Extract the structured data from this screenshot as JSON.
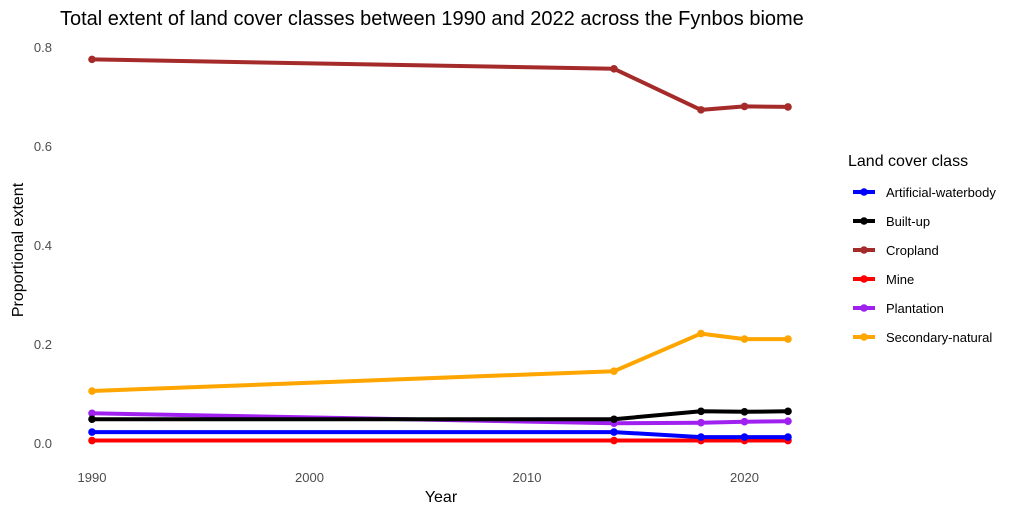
{
  "chart_data": {
    "type": "line",
    "title": "Total extent of land cover classes between 1990 and 2022 across the Fynbos biome",
    "xlabel": "Year",
    "ylabel": "Proportional extent",
    "xlim": [
      1990,
      2022
    ],
    "ylim": [
      0,
      0.8
    ],
    "xticks": [
      1990,
      2000,
      2010,
      2020
    ],
    "yticks": [
      0.0,
      0.2,
      0.4,
      0.6,
      0.8
    ],
    "ytick_labels": [
      "0.0",
      "0.2",
      "0.4",
      "0.6",
      "0.8"
    ],
    "grid": false,
    "legend_position": "right",
    "legend_title": "Land cover class",
    "series": [
      {
        "name": "Artificial-waterbody",
        "color": "#0000ff",
        "x": [
          1990,
          2014,
          2018,
          2020,
          2022
        ],
        "y": [
          0.022,
          0.022,
          0.012,
          0.012,
          0.012
        ]
      },
      {
        "name": "Built-up",
        "color": "#000000",
        "x": [
          1990,
          2014,
          2018,
          2020,
          2022
        ],
        "y": [
          0.048,
          0.048,
          0.064,
          0.063,
          0.064
        ]
      },
      {
        "name": "Cropland",
        "color": "#a52a2a",
        "x": [
          1990,
          2014,
          2018,
          2020,
          2022
        ],
        "y": [
          0.775,
          0.756,
          0.673,
          0.68,
          0.679
        ]
      },
      {
        "name": "Mine",
        "color": "#ff0000",
        "x": [
          1990,
          2014,
          2018,
          2020,
          2022
        ],
        "y": [
          0.005,
          0.005,
          0.005,
          0.005,
          0.005
        ]
      },
      {
        "name": "Plantation",
        "color": "#a020f0",
        "x": [
          1990,
          2014,
          2018,
          2020,
          2022
        ],
        "y": [
          0.06,
          0.04,
          0.041,
          0.043,
          0.044
        ]
      },
      {
        "name": "Secondary-natural",
        "color": "#ffa500",
        "x": [
          1990,
          2014,
          2018,
          2020,
          2022
        ],
        "y": [
          0.105,
          0.145,
          0.221,
          0.21,
          0.21
        ]
      }
    ]
  }
}
